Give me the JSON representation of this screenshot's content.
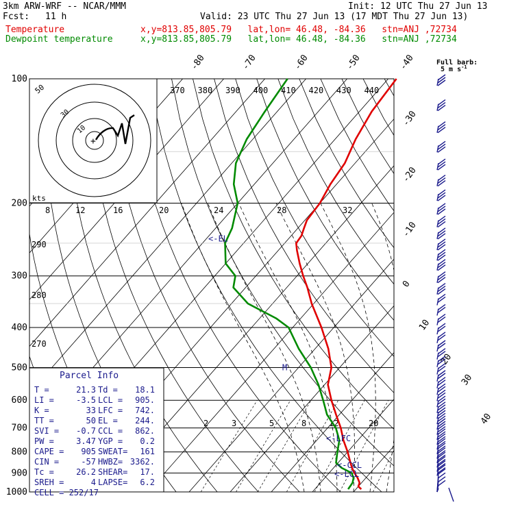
{
  "header": {
    "model": "3km ARW-WRF -- NCAR/MMM",
    "init": "Init: 12 UTC Thu 27 Jun 13",
    "fcst_label": "Fcst:",
    "fcst_value": "11 h",
    "valid": "Valid: 23 UTC Thu 27 Jun 13 (17 MDT Thu 27 Jun 13)",
    "temp_label": "Temperature",
    "temp_info": "x,y=813.85,805.79   lat,lon= 46.48, -84.36   stn=ANJ ,72734",
    "dew_label": "Dewpoint temperature",
    "dew_info": "x,y=813.85,805.79   lat,lon= 46.48, -84.36   stn=ANJ ,72734"
  },
  "colors": {
    "temperature": "#e00000",
    "dewpoint": "#008a00",
    "barbs": "#1a1a8c",
    "grid": "#000000"
  },
  "wind_legend": {
    "title": "Full barb:",
    "value": "5 m s",
    "exp": "-1"
  },
  "parcel_info": {
    "title": "Parcel Info",
    "rows": [
      [
        "T  =",
        "21.3",
        "Td =",
        "18.1"
      ],
      [
        "LI =",
        "-3.5",
        "LCL =",
        "905."
      ],
      [
        "K  =",
        "33",
        "LFC =",
        "742."
      ],
      [
        "TT =",
        "50",
        "EL  =",
        "244."
      ],
      [
        "SVI =",
        "-0.7",
        "CCL =",
        "862."
      ],
      [
        "PW =",
        "3.47",
        "YGP =",
        "0.2"
      ],
      [
        "CAPE =",
        "905",
        "SWEAT=",
        "161"
      ],
      [
        "CIN =",
        "-57",
        "HWBZ=",
        "3362."
      ],
      [
        "Tc =",
        "26.2",
        "SHEAR=",
        "17."
      ],
      [
        "SREH =",
        "4",
        "LAPSE=",
        "6.2"
      ]
    ],
    "cell": "CELL = 252/17"
  },
  "chart_data": {
    "type": "line",
    "chart_kind": "skew-T log-p sounding",
    "y_axis": {
      "scale": "log",
      "unit": "hPa",
      "range": [
        1000,
        100
      ],
      "ticks": [
        100,
        200,
        300,
        400,
        500,
        600,
        700,
        800,
        900,
        1000
      ],
      "tick_labels": [
        "100",
        "200",
        "300",
        "400",
        "500",
        "600",
        "700",
        "800",
        "900",
        "1000"
      ]
    },
    "isotherm_labels": [
      "-80",
      "-70",
      "-60",
      "-50",
      "-40",
      "-30",
      "-20",
      "-10",
      "0",
      "10",
      "20",
      "30",
      "40"
    ],
    "theta_labels": [
      "370",
      "380",
      "390",
      "400",
      "410",
      "420",
      "430",
      "440"
    ],
    "theta_left_labels": [
      "290",
      "280",
      "270"
    ],
    "mixing_ratio_labels": [
      "2",
      "3",
      "5",
      "8",
      "12",
      "20"
    ],
    "hodograph": {
      "unit_label": "kts",
      "ring_labels": [
        "10",
        "30",
        "50"
      ],
      "speed_ticks": [
        "8",
        "12",
        "16",
        "20",
        "24",
        "28",
        "32"
      ]
    },
    "series": [
      {
        "name": "Temperature",
        "pressure": [
          985,
          970,
          950,
          925,
          900,
          875,
          850,
          800,
          750,
          700,
          650,
          600,
          550,
          500,
          450,
          400,
          350,
          320,
          300,
          280,
          260,
          250,
          240,
          230,
          220,
          200,
          180,
          160,
          140,
          120,
          100
        ],
        "values": [
          21.3,
          20.0,
          19.5,
          18.0,
          16.2,
          14.5,
          13.0,
          10.0,
          6.5,
          3.2,
          -0.8,
          -5.0,
          -9.2,
          -12.0,
          -16.8,
          -23.0,
          -30.5,
          -35.0,
          -38.5,
          -42.0,
          -45.5,
          -47.2,
          -47.5,
          -48.5,
          -49.5,
          -50.0,
          -51.5,
          -52.5,
          -55.0,
          -57.0,
          -58.0
        ]
      },
      {
        "name": "Dewpoint temperature",
        "pressure": [
          985,
          950,
          925,
          900,
          875,
          850,
          800,
          750,
          700,
          650,
          600,
          550,
          500,
          450,
          400,
          380,
          350,
          320,
          300,
          280,
          250,
          230,
          200,
          180,
          160,
          140,
          120,
          100
        ],
        "values": [
          18.1,
          17.8,
          17.0,
          15.5,
          12.0,
          9.5,
          7.5,
          5.5,
          2.0,
          -3.0,
          -7.0,
          -11.5,
          -17.0,
          -24.0,
          -31.0,
          -36.0,
          -46.0,
          -53.0,
          -55.0,
          -60.0,
          -64.5,
          -66.0,
          -70.0,
          -75.0,
          -79.0,
          -81.5,
          -83.0,
          -84.5
        ]
      }
    ],
    "annotations": [
      {
        "label": "<-EL",
        "pressure": 244
      },
      {
        "label": "<-LFC",
        "pressure": 742
      },
      {
        "label": "<-CCL",
        "pressure": 862
      },
      {
        "label": "<-LCL",
        "pressure": 905
      },
      {
        "label": "M",
        "pressure": 500
      }
    ],
    "wind_barbs": {
      "pressure": [
        100,
        115,
        130,
        145,
        160,
        175,
        190,
        205,
        220,
        235,
        250,
        265,
        280,
        300,
        320,
        340,
        360,
        380,
        400,
        420,
        440,
        460,
        480,
        500,
        520,
        540,
        560,
        580,
        600,
        620,
        640,
        660,
        680,
        700,
        720,
        740,
        760,
        780,
        800,
        820,
        840,
        860,
        880,
        900,
        920,
        940,
        960,
        980
      ],
      "barb_counts": [
        3,
        3,
        3,
        3,
        3,
        3,
        3,
        3,
        3,
        3,
        3,
        3,
        3,
        3,
        3,
        2,
        2,
        2,
        2,
        2,
        2,
        2,
        2,
        2,
        2,
        2,
        2,
        2,
        2,
        2,
        2,
        2,
        2,
        2,
        2,
        2,
        2,
        2,
        2,
        2,
        2,
        2,
        2,
        1,
        1,
        1,
        1,
        0
      ]
    }
  }
}
